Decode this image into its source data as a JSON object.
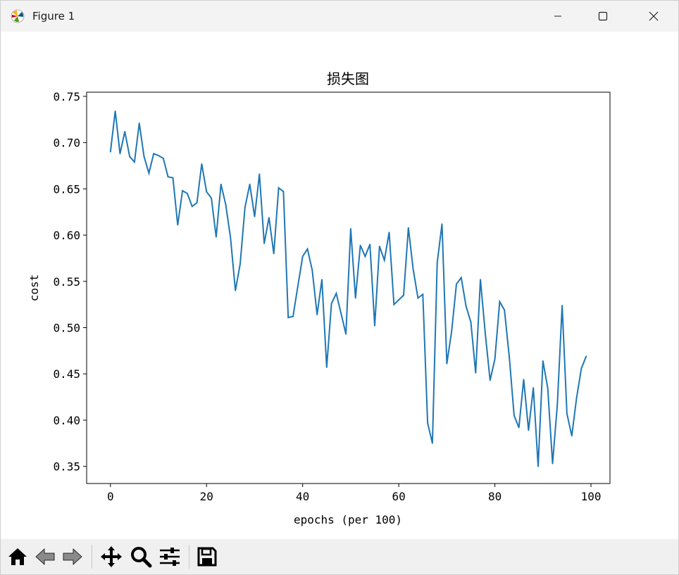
{
  "window": {
    "title": "Figure 1"
  },
  "toolbar": {
    "icons": [
      "home-icon",
      "back-icon",
      "forward-icon",
      "pan-icon",
      "zoom-icon",
      "configure-subplots-icon",
      "save-icon"
    ]
  },
  "colors": {
    "line": "#1f77b4",
    "titlebar": "#f3f3f3",
    "toolbar": "#f0f0f0"
  },
  "chart_data": {
    "type": "line",
    "title": "损失图",
    "xlabel": "epochs (per 100)",
    "ylabel": "cost",
    "xlim": [
      -4.95,
      103.95
    ],
    "ylim": [
      0.3315,
      0.7545
    ],
    "xticks": [
      0,
      20,
      40,
      60,
      80,
      100
    ],
    "xtick_labels": [
      "0",
      "20",
      "40",
      "60",
      "80",
      "100"
    ],
    "yticks": [
      0.35,
      0.4,
      0.45,
      0.5,
      0.55,
      0.6,
      0.65,
      0.7,
      0.75
    ],
    "ytick_labels": [
      "0.35",
      "0.40",
      "0.45",
      "0.50",
      "0.55",
      "0.60",
      "0.65",
      "0.70",
      "0.75"
    ],
    "grid": false,
    "series": [
      {
        "x": [
          0,
          1,
          2,
          3,
          4,
          5,
          6,
          7,
          8,
          9,
          10,
          11,
          12,
          13,
          14,
          15,
          16,
          17,
          18,
          19,
          20,
          21,
          22,
          23,
          24,
          25,
          26,
          27,
          28,
          29,
          30,
          31,
          32,
          33,
          34,
          35,
          36,
          37,
          38,
          39,
          40,
          41,
          42,
          43,
          44,
          45,
          46,
          47,
          48,
          49,
          50,
          51,
          52,
          53,
          54,
          55,
          56,
          57,
          58,
          59,
          60,
          61,
          62,
          63,
          64,
          65,
          66,
          67,
          68,
          69,
          70,
          71,
          72,
          73,
          74,
          75,
          76,
          77,
          78,
          79,
          80,
          81,
          82,
          83,
          84,
          85,
          86,
          87,
          88,
          89,
          90,
          91,
          92,
          93,
          94,
          95,
          96,
          97,
          98,
          99
        ],
        "values": [
          0.69,
          0.734,
          0.688,
          0.712,
          0.685,
          0.679,
          0.721,
          0.685,
          0.667,
          0.688,
          0.686,
          0.683,
          0.663,
          0.662,
          0.611,
          0.648,
          0.645,
          0.631,
          0.635,
          0.677,
          0.647,
          0.64,
          0.598,
          0.655,
          0.633,
          0.597,
          0.54,
          0.569,
          0.63,
          0.655,
          0.62,
          0.666,
          0.591,
          0.619,
          0.58,
          0.651,
          0.647,
          0.511,
          0.512,
          0.545,
          0.577,
          0.585,
          0.562,
          0.514,
          0.552,
          0.457,
          0.526,
          0.537,
          0.515,
          0.493,
          0.607,
          0.532,
          0.589,
          0.577,
          0.59,
          0.502,
          0.588,
          0.573,
          0.603,
          0.525,
          0.53,
          0.535,
          0.608,
          0.563,
          0.532,
          0.536,
          0.397,
          0.375,
          0.57,
          0.612,
          0.461,
          0.496,
          0.547,
          0.554,
          0.523,
          0.506,
          0.451,
          0.552,
          0.494,
          0.443,
          0.466,
          0.528,
          0.519,
          0.468,
          0.405,
          0.392,
          0.444,
          0.389,
          0.435,
          0.35,
          0.464,
          0.435,
          0.353,
          0.417,
          0.524,
          0.407,
          0.383,
          0.424,
          0.456,
          0.469
        ]
      }
    ]
  }
}
